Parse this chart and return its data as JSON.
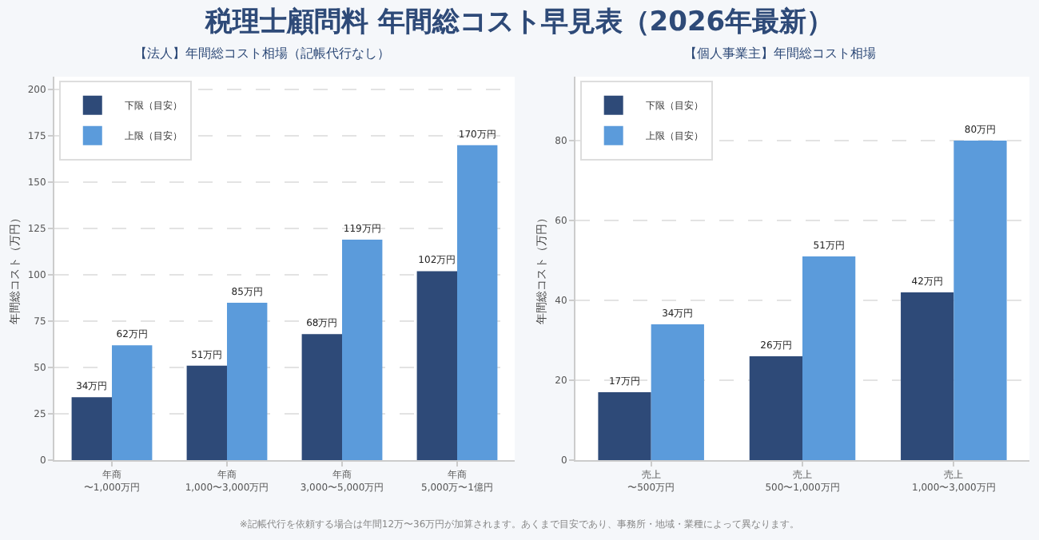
{
  "chart_data": [
    {
      "type": "bar",
      "title": "税理士顧問料 年間総コスト早見表（2026年最新）",
      "subtitle": "【法人】年間総コスト相場（記帳代行なし）",
      "ylabel": "年間総コスト（万円）",
      "categories": [
        "年商〜1,000万円",
        "年商1,000〜3,000万円",
        "年商3,000〜5,000万円",
        "年商5,000万〜1億円"
      ],
      "series": [
        {
          "name": "下限（目安）",
          "color": "#2e4a78",
          "values": [
            34,
            51,
            68,
            102
          ],
          "value_labels": [
            "34万円",
            "51万円",
            "68万円",
            "102万円"
          ]
        },
        {
          "name": "上限（目安）",
          "color": "#5b9bdb",
          "values": [
            62,
            85,
            119,
            170
          ],
          "value_labels": [
            "62万円",
            "85万円",
            "119万円",
            "170万円"
          ]
        }
      ],
      "ylim": [
        0,
        207
      ],
      "yticks": [
        0,
        25,
        50,
        75,
        100,
        125,
        150,
        175,
        200
      ],
      "grid": "y",
      "legend": "top left",
      "annotations": [
        "※記帳代行を依頼する場合は年間12万〜36万円が加算されます。あくまで目安であり、事務所・地域・業種によって異なります。"
      ]
    },
    {
      "type": "bar",
      "subtitle": "【個人事業主】年間総コスト相場",
      "ylabel": "年間総コスト（万円）",
      "categories": [
        "売上〜500万円",
        "売上500〜1,000万円",
        "売上1,000〜3,000万円"
      ],
      "series": [
        {
          "name": "下限（目安）",
          "color": "#2e4a78",
          "values": [
            17,
            26,
            42
          ],
          "value_labels": [
            "17万円",
            "26万円",
            "42万円"
          ]
        },
        {
          "name": "上限（目安）",
          "color": "#5b9bdb",
          "values": [
            34,
            51,
            80
          ],
          "value_labels": [
            "34万円",
            "51万円",
            "80万円"
          ]
        }
      ],
      "ylim": [
        0,
        96
      ],
      "yticks": [
        0,
        20,
        40,
        60,
        80
      ],
      "grid": "y",
      "legend": "top left"
    }
  ]
}
